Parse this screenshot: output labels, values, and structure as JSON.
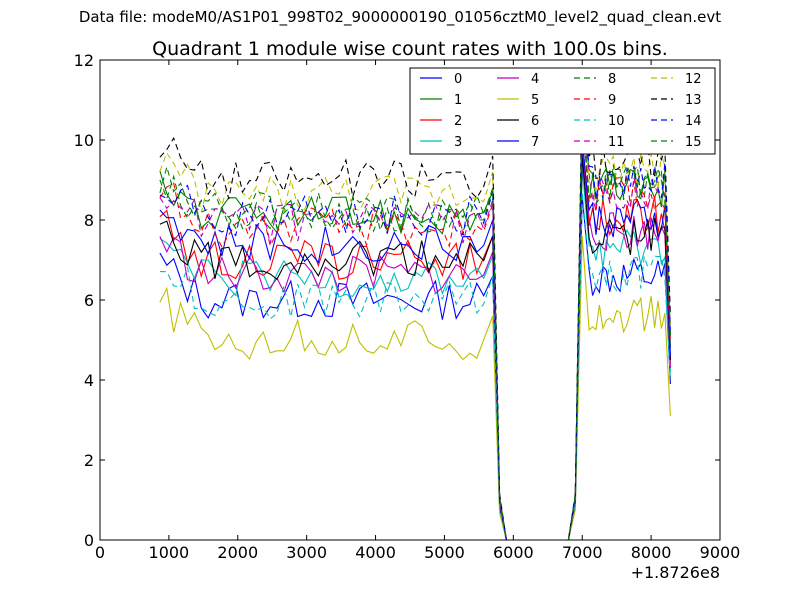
{
  "header": {
    "data_file": "Data file: modeM0/AS1P01_998T02_9000000190_01056cztM0_level2_quad_clean.evt"
  },
  "chart_data": {
    "type": "line",
    "title": "Quadrant 1 module wise count rates with 100.0s bins.",
    "xlabel": "",
    "ylabel": "",
    "x_offset_label": "+1.8726e8",
    "xlim": [
      0,
      9000
    ],
    "ylim": [
      0,
      12
    ],
    "xticks": [
      0,
      1000,
      2000,
      3000,
      4000,
      5000,
      6000,
      7000,
      8000,
      9000
    ],
    "yticks": [
      0,
      2,
      4,
      6,
      8,
      10,
      12
    ],
    "grid": false,
    "legend_position": "top-right",
    "legend_columns": 4,
    "gap_segment": {
      "x": [
        5700,
        5800,
        5900,
        6000,
        6800,
        6900,
        7000
      ],
      "scale": [
        1.0,
        0.12,
        0.0,
        0.0,
        0.0,
        0.1,
        1.0
      ]
    },
    "series": [
      {
        "name": "0",
        "color": "#0000ff",
        "dash": "solid",
        "level_a": 6.0,
        "level_b": 6.6,
        "end": 3.9
      },
      {
        "name": "1",
        "color": "#008000",
        "dash": "solid",
        "level_a": 8.1,
        "level_b": 8.8,
        "end": 4.8
      },
      {
        "name": "2",
        "color": "#ff0000",
        "dash": "solid",
        "level_a": 7.0,
        "level_b": 8.1,
        "end": 4.4
      },
      {
        "name": "3",
        "color": "#00bfbf",
        "dash": "solid",
        "level_a": 6.5,
        "level_b": 7.3,
        "end": 4.2
      },
      {
        "name": "4",
        "color": "#bf00bf",
        "dash": "solid",
        "level_a": 6.6,
        "level_b": 7.7,
        "end": 4.3
      },
      {
        "name": "5",
        "color": "#bfbf00",
        "dash": "solid",
        "level_a": 5.0,
        "level_b": 5.6,
        "end": 3.1
      },
      {
        "name": "6",
        "color": "#000000",
        "dash": "solid",
        "level_a": 7.0,
        "level_b": 7.6,
        "end": 4.5
      },
      {
        "name": "7",
        "color": "#0000ff",
        "dash": "solid",
        "level_a": 7.4,
        "level_b": 8.0,
        "end": 4.6
      },
      {
        "name": "8",
        "color": "#008000",
        "dash": "dashed",
        "level_a": 8.2,
        "level_b": 8.9,
        "end": 5.0
      },
      {
        "name": "9",
        "color": "#ff0000",
        "dash": "dashed",
        "level_a": 7.8,
        "level_b": 8.6,
        "end": 4.9
      },
      {
        "name": "10",
        "color": "#00bfbf",
        "dash": "dashed",
        "level_a": 6.0,
        "level_b": 6.7,
        "end": 4.0
      },
      {
        "name": "11",
        "color": "#bf00bf",
        "dash": "dashed",
        "level_a": 7.9,
        "level_b": 8.7,
        "end": 5.0
      },
      {
        "name": "12",
        "color": "#bfbf00",
        "dash": "dashed",
        "level_a": 8.6,
        "level_b": 9.2,
        "end": 5.3
      },
      {
        "name": "13",
        "color": "#000000",
        "dash": "dashed",
        "level_a": 9.0,
        "level_b": 9.5,
        "end": 5.6
      },
      {
        "name": "14",
        "color": "#0000ff",
        "dash": "dashed",
        "level_a": 8.1,
        "level_b": 9.0,
        "end": 5.2
      },
      {
        "name": "15",
        "color": "#008000",
        "dash": "dashed",
        "level_a": 8.2,
        "level_b": 8.9,
        "end": 5.1
      }
    ]
  }
}
